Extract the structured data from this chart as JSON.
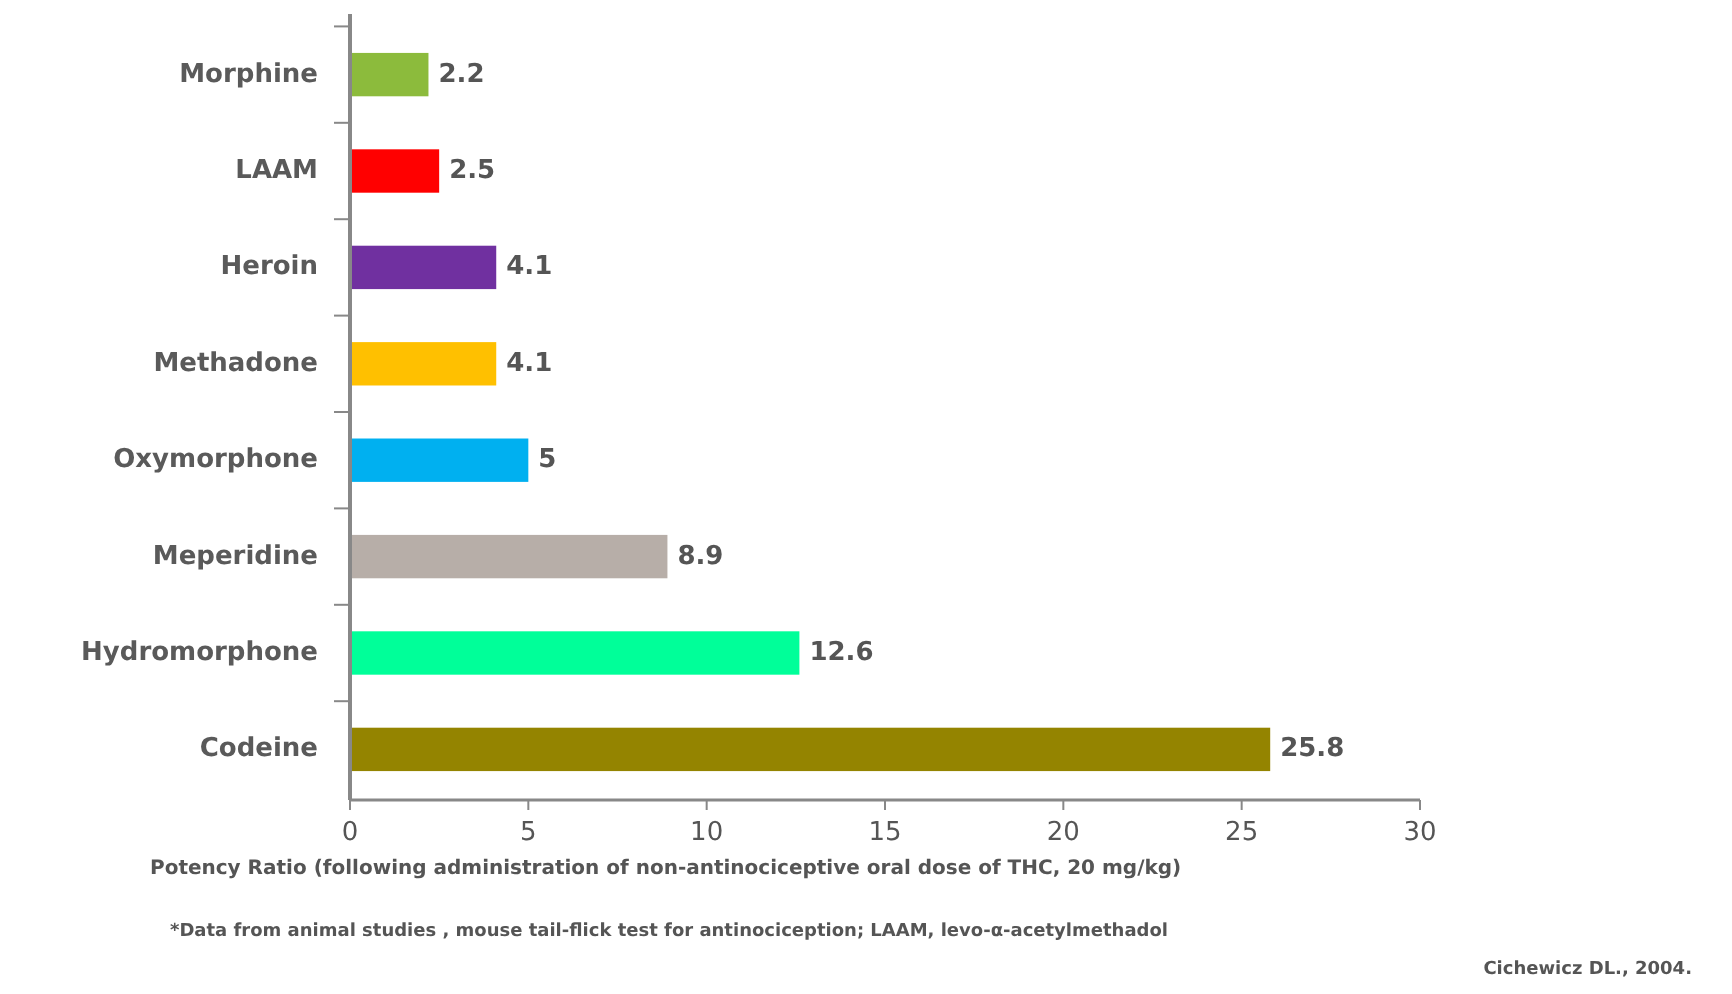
{
  "chart_data": {
    "type": "bar",
    "orientation": "horizontal",
    "categories": [
      "Morphine",
      "LAAM",
      "Heroin",
      "Methadone",
      "Oxymorphone",
      "Meperidine",
      "Hydromorphone",
      "Codeine"
    ],
    "values": [
      2.2,
      2.5,
      4.1,
      4.1,
      5,
      8.9,
      12.6,
      25.8
    ],
    "colors": [
      "#8cbb3c",
      "#ff0000",
      "#7030a0",
      "#ffc000",
      "#00b0f0",
      "#b7aea8",
      "#00ff99",
      "#948400"
    ],
    "xlim": [
      0,
      30
    ],
    "xticks": [
      0,
      5,
      10,
      15,
      20,
      25,
      30
    ],
    "data_labels": true,
    "grid": false,
    "xlabel": "Potency Ratio (following administration of non-antinociceptive oral dose of THC, 20 mg/kg)",
    "annotations": [
      "*Data from animal studies , mouse tail-flick test for antinociception; LAAM, levo-α-acetylmethadol",
      "Cichewicz DL., 2004."
    ]
  }
}
